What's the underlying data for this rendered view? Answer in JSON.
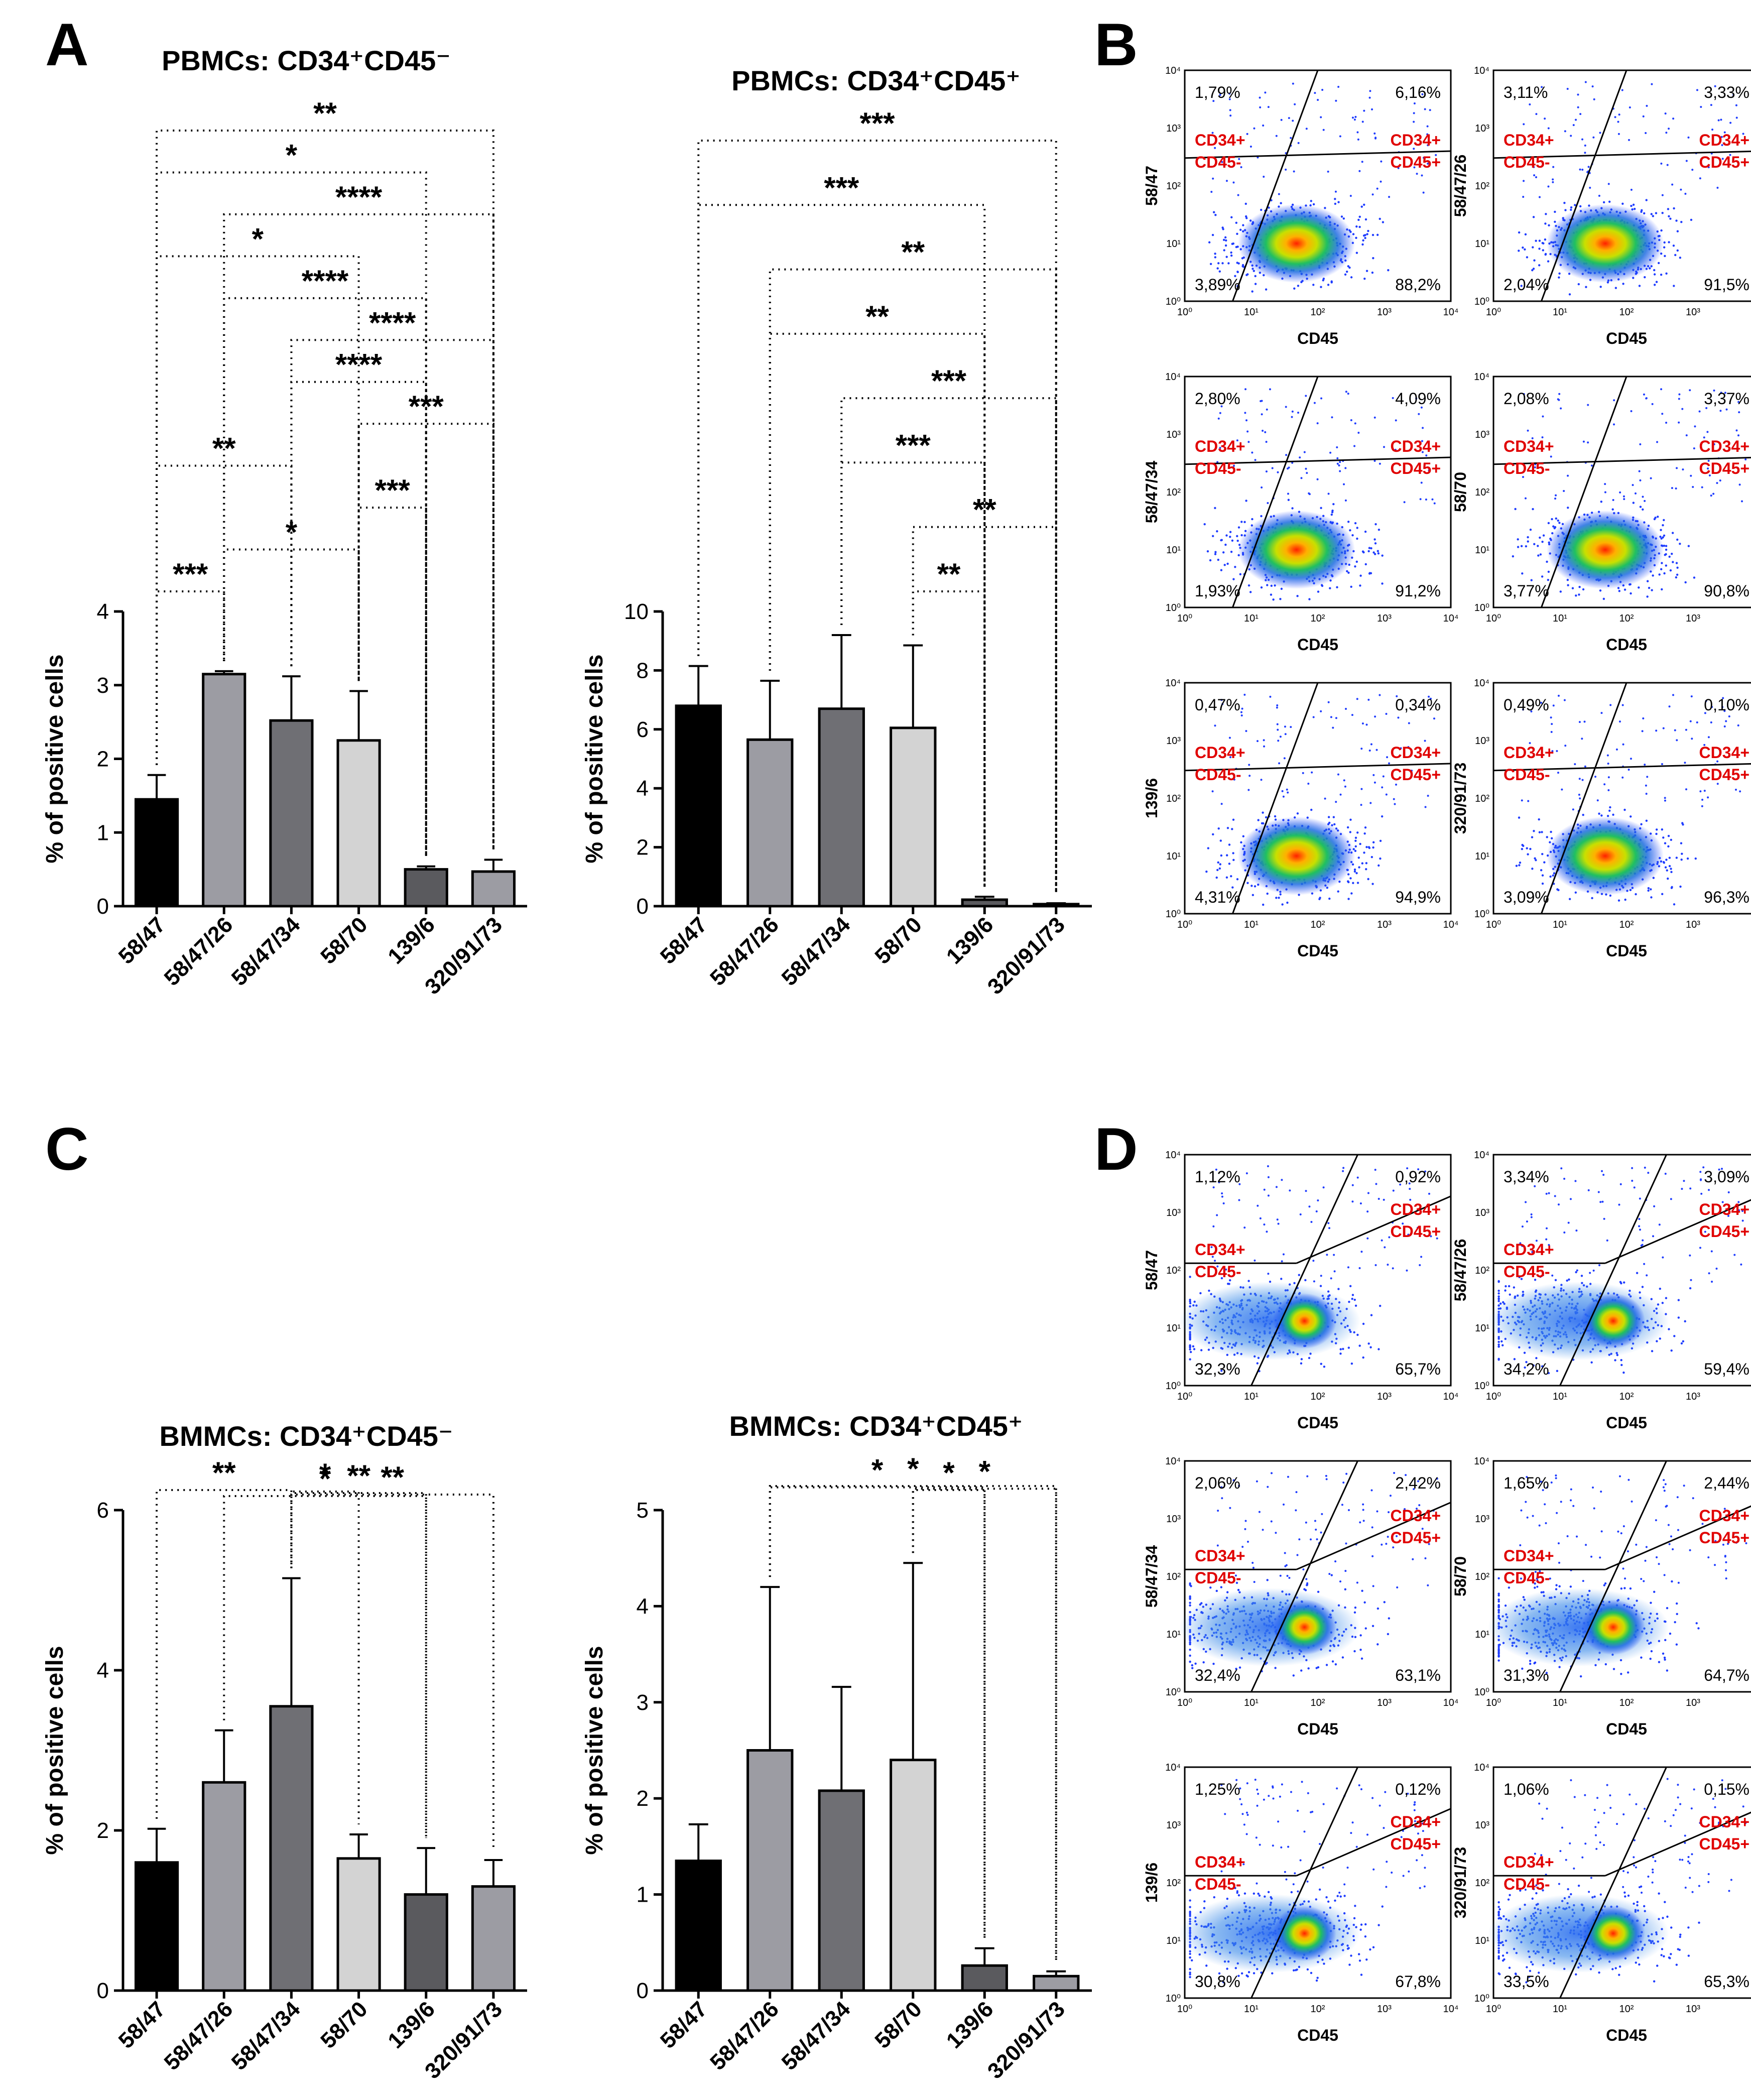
{
  "panel_labels": [
    "A",
    "B",
    "C",
    "D"
  ],
  "chart_data": [
    {
      "id": "pbmc_neg",
      "type": "bar",
      "panel": "A",
      "title": "PBMCs: CD34⁺CD45⁻",
      "ylabel": "% of positive cells",
      "categories": [
        "58/47",
        "58/47/26",
        "58/47/34",
        "58/70",
        "139/6",
        "320/91/73"
      ],
      "values": [
        1.45,
        3.15,
        2.52,
        2.25,
        0.5,
        0.47
      ],
      "errors": [
        0.33,
        0.04,
        0.6,
        0.67,
        0.04,
        0.16
      ],
      "colors": [
        "#000000",
        "#9c9ca3",
        "#6f6f74",
        "#d3d3d3",
        "#5a5a5e",
        "#9c9ca3"
      ],
      "ylim": [
        0,
        4
      ],
      "yticks": [
        "0",
        "1",
        "2",
        "3",
        "4"
      ],
      "comparisons": [
        {
          "from": 0,
          "to": 1,
          "label": "***"
        },
        {
          "from": 1,
          "to": 3,
          "label": "*"
        },
        {
          "from": 3,
          "to": 4,
          "label": "***"
        },
        {
          "from": 0,
          "to": 2,
          "label": "**"
        },
        {
          "from": 3,
          "to": 5,
          "label": "***"
        },
        {
          "from": 2,
          "to": 4,
          "label": "****"
        },
        {
          "from": 2,
          "to": 5,
          "label": "****"
        },
        {
          "from": 1,
          "to": 4,
          "label": "****"
        },
        {
          "from": 0,
          "to": 3,
          "label": "*"
        },
        {
          "from": 1,
          "to": 5,
          "label": "****"
        },
        {
          "from": 0,
          "to": 4,
          "label": "*"
        },
        {
          "from": 0,
          "to": 5,
          "label": "**"
        }
      ]
    },
    {
      "id": "pbmc_pos",
      "type": "bar",
      "panel": "A",
      "title": "PBMCs: CD34⁺CD45⁺",
      "ylabel": "% of positive cells",
      "categories": [
        "58/47",
        "58/47/26",
        "58/47/34",
        "58/70",
        "139/6",
        "320/91/73"
      ],
      "values": [
        6.8,
        5.65,
        6.7,
        6.05,
        0.22,
        0.07
      ],
      "errors": [
        1.35,
        2.0,
        2.5,
        2.8,
        0.1,
        0.03
      ],
      "colors": [
        "#000000",
        "#9c9ca3",
        "#6f6f74",
        "#d3d3d3",
        "#5a5a5e",
        "#9c9ca3"
      ],
      "ylim": [
        0,
        10
      ],
      "yticks": [
        "0",
        "2",
        "4",
        "6",
        "8",
        "10"
      ],
      "comparisons": [
        {
          "from": 3,
          "to": 4,
          "label": "**"
        },
        {
          "from": 3,
          "to": 5,
          "label": "**"
        },
        {
          "from": 2,
          "to": 4,
          "label": "***"
        },
        {
          "from": 2,
          "to": 5,
          "label": "***"
        },
        {
          "from": 1,
          "to": 4,
          "label": "**"
        },
        {
          "from": 1,
          "to": 5,
          "label": "**"
        },
        {
          "from": 0,
          "to": 4,
          "label": "***"
        },
        {
          "from": 0,
          "to": 5,
          "label": "***"
        }
      ]
    },
    {
      "id": "bmmc_neg",
      "type": "bar",
      "panel": "C",
      "title": "BMMCs: CD34⁺CD45⁻",
      "ylabel": "% of positive cells",
      "categories": [
        "58/47",
        "58/47/26",
        "58/47/34",
        "58/70",
        "139/6",
        "320/91/73"
      ],
      "values": [
        1.6,
        2.6,
        3.55,
        1.65,
        1.2,
        1.3
      ],
      "errors": [
        0.42,
        0.65,
        1.6,
        0.3,
        0.58,
        0.33
      ],
      "colors": [
        "#000000",
        "#9c9ca3",
        "#6f6f74",
        "#d3d3d3",
        "#5a5a5e",
        "#9c9ca3"
      ],
      "ylim": [
        0,
        6
      ],
      "yticks": [
        "0",
        "2",
        "4",
        "6"
      ],
      "comparisons": [
        {
          "from": 0,
          "to": 2,
          "label": "**"
        },
        {
          "from": 2,
          "to": 3,
          "label": "*"
        },
        {
          "from": 2,
          "to": 4,
          "label": "**"
        },
        {
          "from": 2,
          "to": 5,
          "label": "**"
        },
        {
          "from": 1,
          "to": 4,
          "label": "*"
        }
      ]
    },
    {
      "id": "bmmc_pos",
      "type": "bar",
      "panel": "C",
      "title": "BMMCs: CD34⁺CD45⁺",
      "ylabel": "% of positive cells",
      "categories": [
        "58/47",
        "58/47/26",
        "58/47/34",
        "58/70",
        "139/6",
        "320/91/73"
      ],
      "values": [
        1.35,
        2.5,
        2.08,
        2.4,
        0.26,
        0.15
      ],
      "errors": [
        0.38,
        1.7,
        1.08,
        2.05,
        0.18,
        0.05
      ],
      "colors": [
        "#000000",
        "#9c9ca3",
        "#6f6f74",
        "#d3d3d3",
        "#5a5a5e",
        "#9c9ca3"
      ],
      "ylim": [
        0,
        5
      ],
      "yticks": [
        "0",
        "1",
        "2",
        "3",
        "4",
        "5"
      ],
      "comparisons": [
        {
          "from": 3,
          "to": 4,
          "label": "*"
        },
        {
          "from": 3,
          "to": 5,
          "label": "*"
        },
        {
          "from": 1,
          "to": 4,
          "label": "*"
        },
        {
          "from": 1,
          "to": 5,
          "label": "*"
        }
      ]
    }
  ],
  "flow_panels": {
    "xlabel": "CD45",
    "gate_top_left": [
      "CD34+",
      "CD45-"
    ],
    "gate_top_right": [
      "CD34+",
      "CD45+"
    ],
    "decade_labels": [
      "10⁰",
      "10¹",
      "10²",
      "10³",
      "10⁴"
    ],
    "B": [
      {
        "sample": "58/47",
        "q": [
          "1,79%",
          "6,16%",
          "3,89%",
          "88,2%"
        ]
      },
      {
        "sample": "58/47/26",
        "q": [
          "3,11%",
          "3,33%",
          "2,04%",
          "91,5%"
        ]
      },
      {
        "sample": "58/47/34",
        "q": [
          "2,80%",
          "4,09%",
          "1,93%",
          "91,2%"
        ]
      },
      {
        "sample": "58/70",
        "q": [
          "2,08%",
          "3,37%",
          "3,77%",
          "90,8%"
        ]
      },
      {
        "sample": "139/6",
        "q": [
          "0,47%",
          "0,34%",
          "4,31%",
          "94,9%"
        ]
      },
      {
        "sample": "320/91/73",
        "q": [
          "0,49%",
          "0,10%",
          "3,09%",
          "96,3%"
        ]
      }
    ],
    "D": [
      {
        "sample": "58/47",
        "q": [
          "1,12%",
          "0,92%",
          "32,3%",
          "65,7%"
        ]
      },
      {
        "sample": "58/47/26",
        "q": [
          "3,34%",
          "3,09%",
          "34,2%",
          "59,4%"
        ]
      },
      {
        "sample": "58/47/34",
        "q": [
          "2,06%",
          "2,42%",
          "32,4%",
          "63,1%"
        ]
      },
      {
        "sample": "58/70",
        "q": [
          "1,65%",
          "2,44%",
          "31,3%",
          "64,7%"
        ]
      },
      {
        "sample": "139/6",
        "q": [
          "1,25%",
          "0,12%",
          "30,8%",
          "67,8%"
        ]
      },
      {
        "sample": "320/91/73",
        "q": [
          "1,06%",
          "0,15%",
          "33,5%",
          "65,3%"
        ]
      }
    ]
  }
}
